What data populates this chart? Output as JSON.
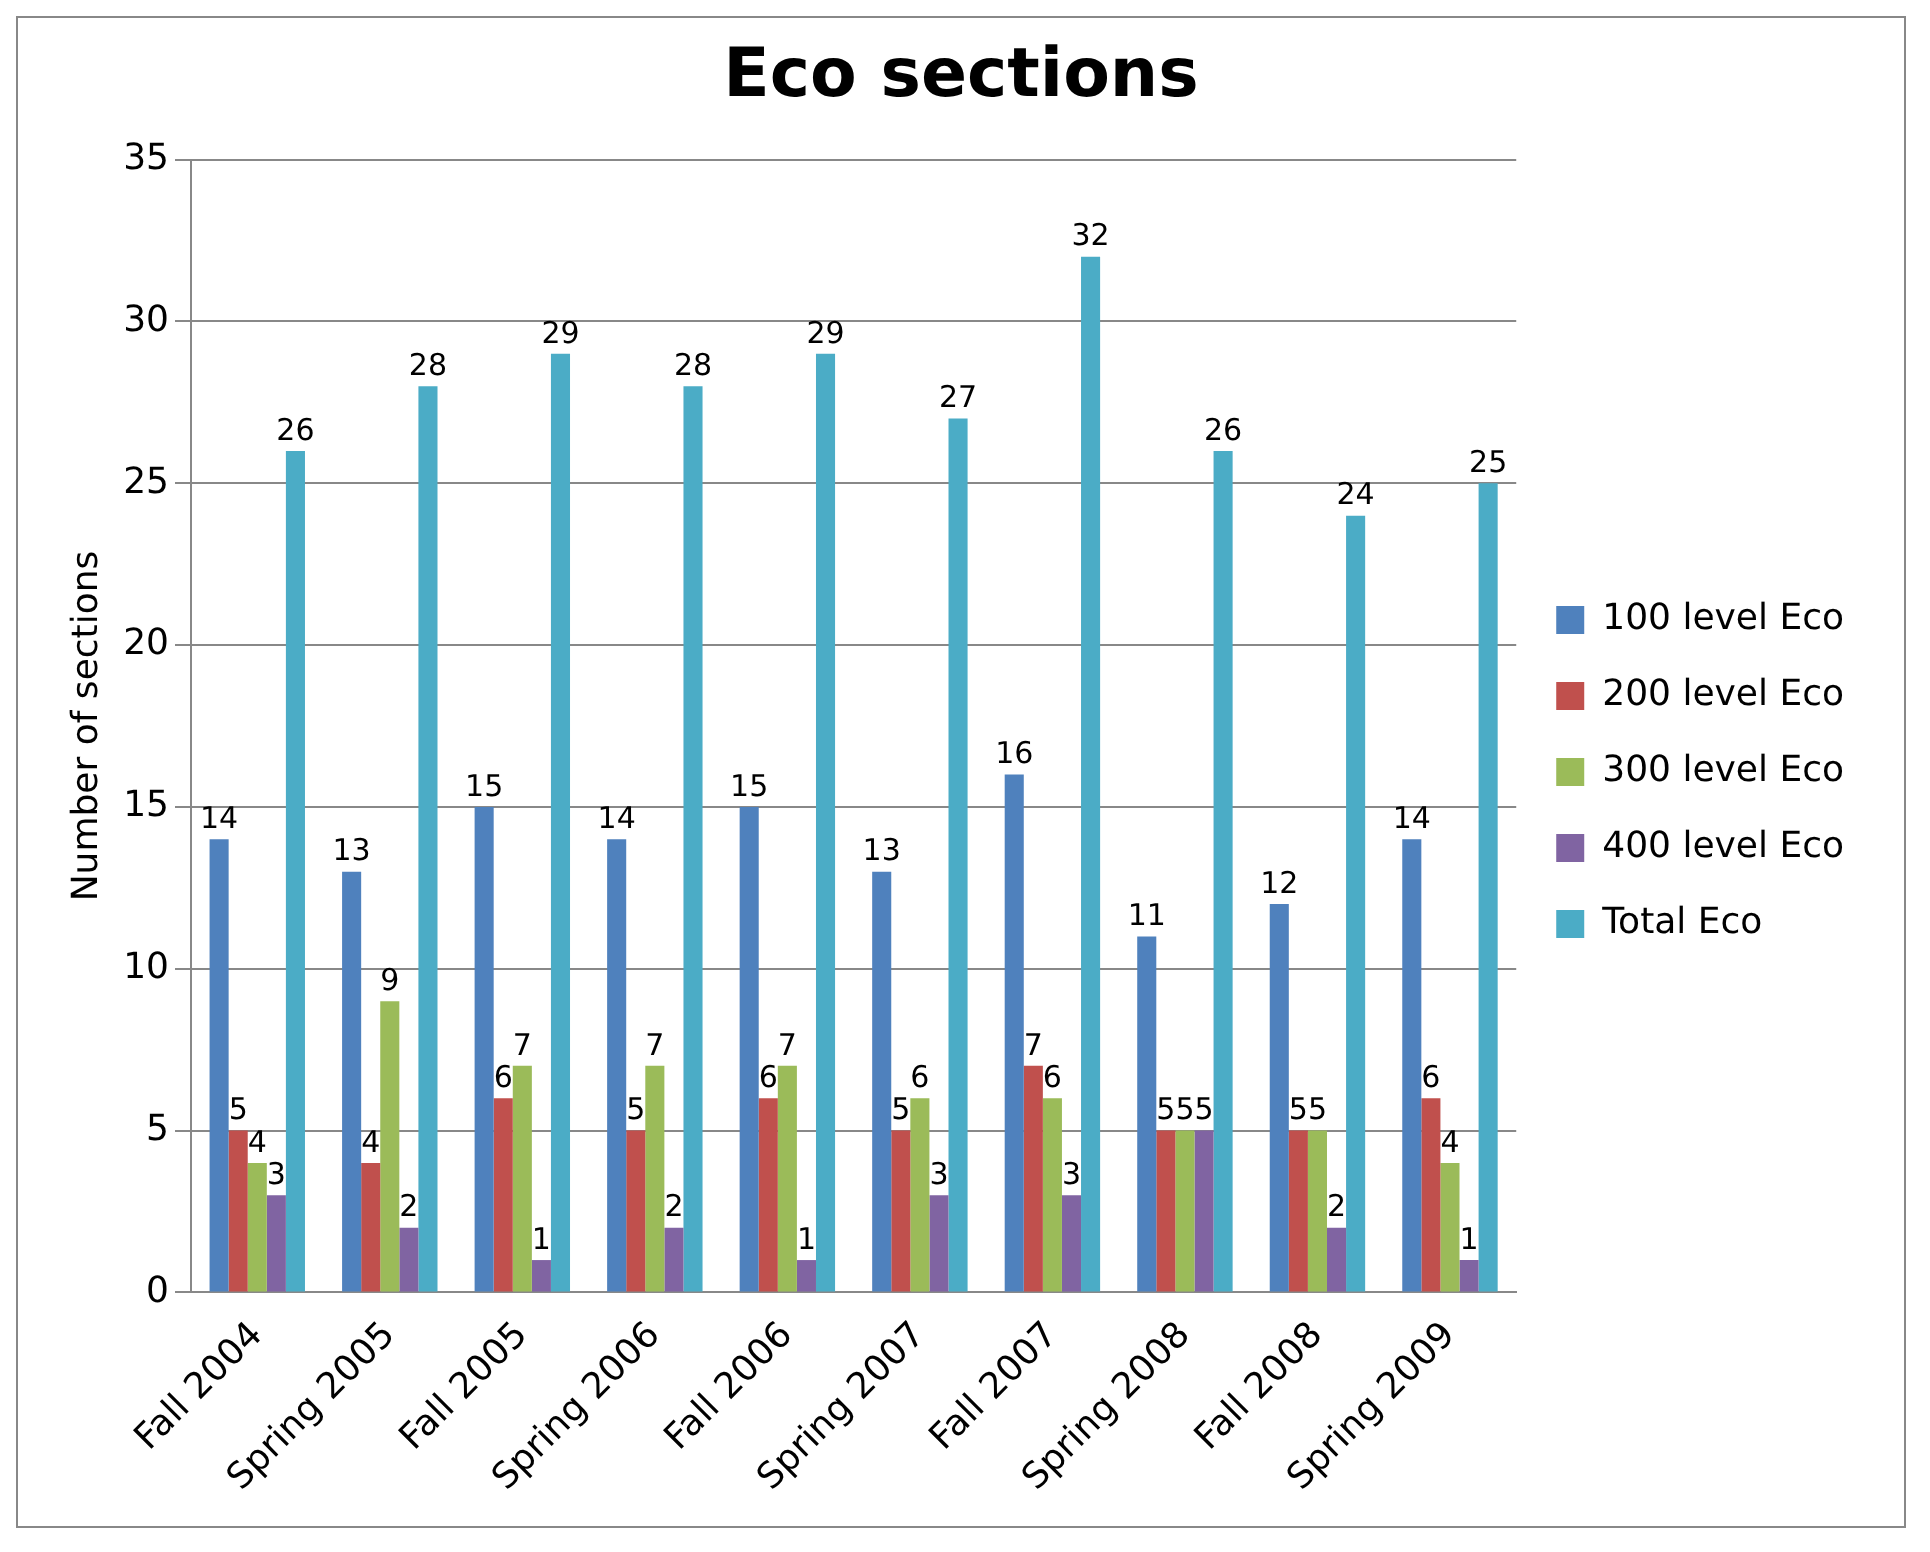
{
  "chart_data": {
    "type": "bar",
    "title": "Eco sections",
    "ylabel": "Number of sections",
    "categories": [
      "Fall 2004",
      "Spring 2005",
      "Fall 2005",
      "Spring 2006",
      "Fall 2006",
      "Spring 2007",
      "Fall 2007",
      "Spring 2008",
      "Fall 2008",
      "Spring 2009"
    ],
    "series": [
      {
        "name": "100 level Eco",
        "color": "#4f81bd",
        "values": [
          14,
          13,
          15,
          14,
          15,
          13,
          16,
          11,
          12,
          14
        ]
      },
      {
        "name": "200 level Eco",
        "color": "#c0504d",
        "values": [
          5,
          4,
          6,
          5,
          6,
          5,
          7,
          5,
          5,
          6
        ]
      },
      {
        "name": "300 level Eco",
        "color": "#9bbb59",
        "values": [
          4,
          9,
          7,
          7,
          7,
          6,
          6,
          5,
          5,
          4
        ]
      },
      {
        "name": "400 level Eco",
        "color": "#8064a2",
        "values": [
          3,
          2,
          1,
          2,
          1,
          3,
          3,
          5,
          2,
          1
        ]
      },
      {
        "name": "Total Eco",
        "color": "#4bacc6",
        "values": [
          26,
          28,
          29,
          28,
          29,
          27,
          32,
          26,
          24,
          25
        ]
      }
    ],
    "ylim": [
      0,
      35
    ],
    "yticks": [
      0,
      5,
      10,
      15,
      20,
      25,
      30,
      35
    ],
    "grid": "y",
    "legend": "right",
    "data_labels": true
  }
}
